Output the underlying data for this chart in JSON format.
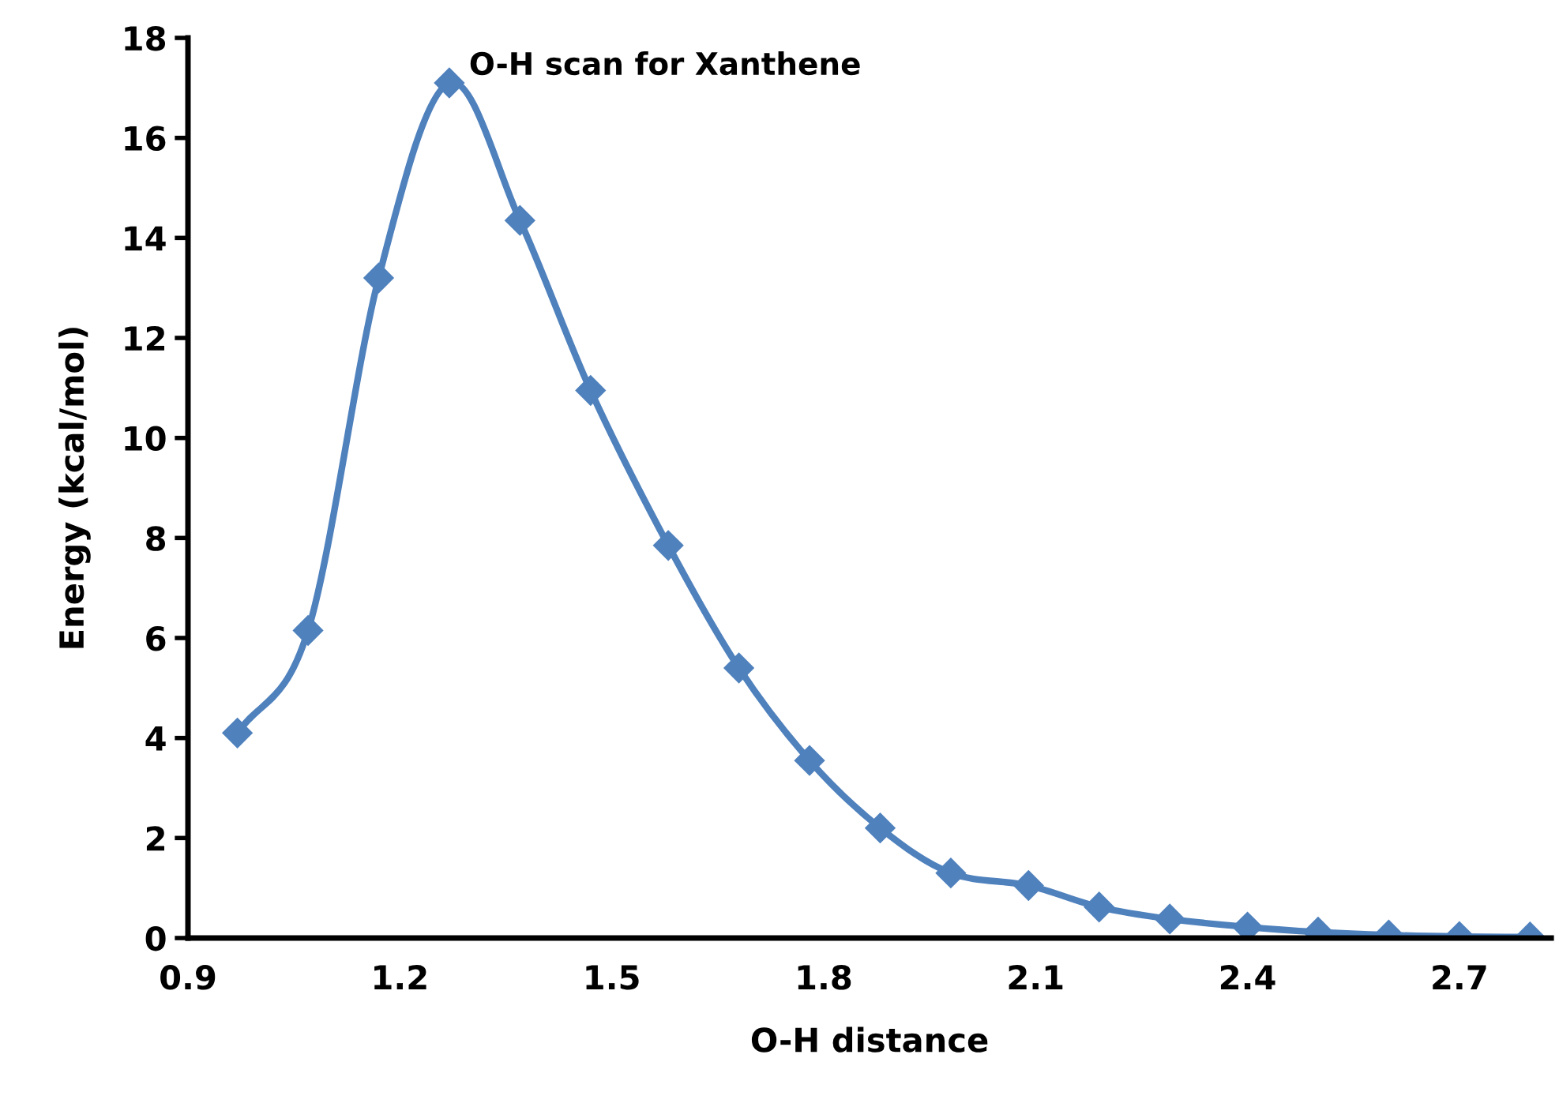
{
  "chart_data": {
    "type": "line",
    "title": "O-H scan for Xanthene",
    "xlabel": "O-H distance",
    "ylabel": "Energy (kcal/mol)",
    "x": [
      0.97,
      1.07,
      1.17,
      1.27,
      1.37,
      1.47,
      1.58,
      1.68,
      1.78,
      1.88,
      1.98,
      2.09,
      2.19,
      2.29,
      2.4,
      2.5,
      2.6,
      2.7,
      2.8
    ],
    "series": [
      {
        "color": "#4f81bd",
        "values": [
          4.1,
          6.15,
          13.2,
          17.1,
          14.35,
          10.95,
          7.85,
          5.4,
          3.55,
          2.2,
          1.3,
          1.05,
          0.62,
          0.38,
          0.22,
          0.12,
          0.06,
          0.03,
          0.02
        ]
      }
    ],
    "xlim": [
      0.9,
      2.83
    ],
    "ylim": [
      0,
      18
    ],
    "xticks": [
      0.9,
      1.2,
      1.5,
      1.8,
      2.1,
      2.4,
      2.7
    ],
    "yticks": [
      0,
      2,
      4,
      6,
      8,
      10,
      12,
      14,
      16,
      18
    ],
    "grid": false,
    "legend": false,
    "marker": "diamond",
    "line_style": "solid"
  }
}
